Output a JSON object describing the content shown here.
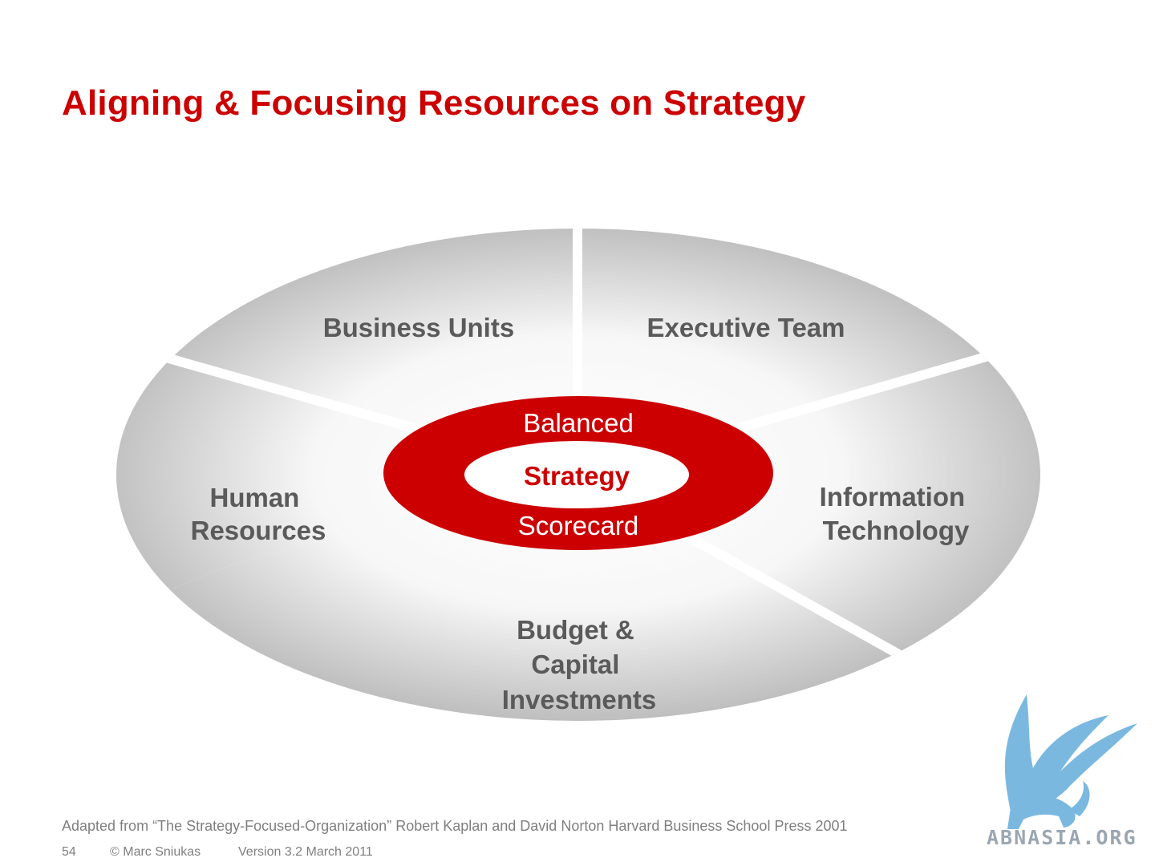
{
  "slide": {
    "title": "Aligning & Focusing Resources on Strategy"
  },
  "diagram": {
    "segments": [
      {
        "label_lines": [
          "Business Units"
        ]
      },
      {
        "label_lines": [
          "Executive Team"
        ]
      },
      {
        "label_lines": [
          "Information",
          "Technology"
        ]
      },
      {
        "label_lines": [
          "Budget &",
          "Capital",
          "Investments"
        ]
      },
      {
        "label_lines": [
          "Human",
          "Resources"
        ]
      }
    ],
    "hub": {
      "top_label": "Balanced",
      "center_label": "Strategy",
      "bottom_label": "Scorecard"
    },
    "colors": {
      "hub_red": "#cc0000",
      "segment_light": "#ffffff",
      "segment_dark": "#b9b9b9",
      "label_gray": "#5a5a5a"
    }
  },
  "source_note": "Adapted from “The Strategy-Focused-Organization” Robert Kaplan and David Norton Harvard Business School Press 2001",
  "footer": {
    "page_number": "54",
    "copyright": "© Marc Sniukas",
    "version": "Version 3.2 March 2011"
  },
  "logo": {
    "text": "ABNASIA.ORG",
    "icon": "griffin-icon",
    "color": "#7ab8e0"
  }
}
